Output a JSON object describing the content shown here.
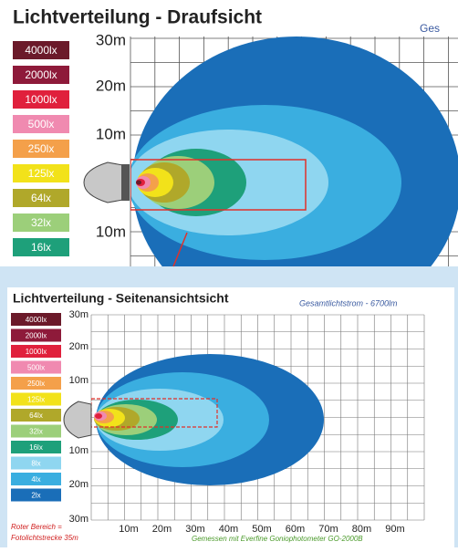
{
  "top": {
    "title": "Lichtverteilung - Draufsicht",
    "corner_text": "Ges",
    "legend": [
      {
        "label": "4000lx",
        "color": "#6b1a2a"
      },
      {
        "label": "2000lx",
        "color": "#8e1a3a"
      },
      {
        "label": "1000lx",
        "color": "#e0203c"
      },
      {
        "label": "500lx",
        "color": "#f08ab0"
      },
      {
        "label": "250lx",
        "color": "#f4a04a"
      },
      {
        "label": "125lx",
        "color": "#f2e21a"
      },
      {
        "label": "64lx",
        "color": "#b0a82a"
      },
      {
        "label": "32lx",
        "color": "#9ccf7a"
      },
      {
        "label": "16lx",
        "color": "#1ea07a"
      }
    ],
    "y_labels": [
      "30m",
      "20m",
      "10m",
      "10m"
    ]
  },
  "bottom": {
    "title": "Lichtverteilung - Seitenansichtsicht",
    "flux": "Gesamtlichtstrom -   6700lm",
    "legend": [
      {
        "label": "4000lx",
        "color": "#6b1a2a"
      },
      {
        "label": "2000lx",
        "color": "#8e1a3a"
      },
      {
        "label": "1000lx",
        "color": "#e0203c"
      },
      {
        "label": "500lx",
        "color": "#f08ab0"
      },
      {
        "label": "250lx",
        "color": "#f4a04a"
      },
      {
        "label": "125lx",
        "color": "#f2e21a"
      },
      {
        "label": "64lx",
        "color": "#b0a82a"
      },
      {
        "label": "32lx",
        "color": "#9ccf7a"
      },
      {
        "label": "16lx",
        "color": "#1ea07a"
      },
      {
        "label": "8lx",
        "color": "#8fd6f0"
      },
      {
        "label": "4lx",
        "color": "#3aaee0"
      },
      {
        "label": "2lx",
        "color": "#1a6eb8"
      }
    ],
    "y_labels": [
      "30m",
      "20m",
      "10m",
      "10m",
      "20m",
      "30m"
    ],
    "x_labels": [
      "10m",
      "20m",
      "30m",
      "40m",
      "50m",
      "60m",
      "70m",
      "80m",
      "90m"
    ],
    "note_red": "Roter Bereich =",
    "note_red2": "Fotolichtstrecke 35m",
    "note_measured": "Gemessen mit Everfine Goniophotometer GO-2000B"
  }
}
